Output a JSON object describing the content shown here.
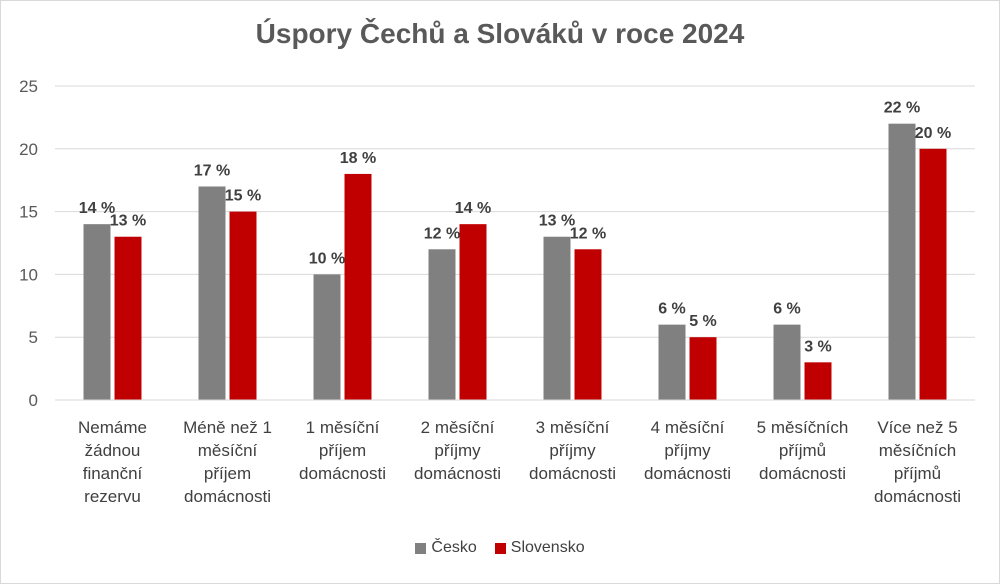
{
  "chart_data": {
    "type": "bar",
    "title": "Úspory Čechů a Slováků v roce 2024",
    "categories": [
      [
        "Nemáme",
        "žádnou",
        "finanční",
        "rezervu"
      ],
      [
        "Méně než 1",
        "měsíční",
        "příjem",
        "domácnosti"
      ],
      [
        "1 měsíční",
        "příjem",
        "domácnosti"
      ],
      [
        "2 měsíční",
        "příjmy",
        "domácnosti"
      ],
      [
        "3 měsíční",
        "příjmy",
        "domácnosti"
      ],
      [
        "4 měsíční",
        "příjmy",
        "domácnosti"
      ],
      [
        "5 měsíčních",
        "příjmů",
        "domácnosti"
      ],
      [
        "Více než 5",
        "měsíčních",
        "příjmů",
        "domácnosti"
      ]
    ],
    "series": [
      {
        "name": "Česko",
        "color": "#808080",
        "values": [
          14,
          17,
          10,
          12,
          13,
          6,
          6,
          22
        ]
      },
      {
        "name": "Slovensko",
        "color": "#c00000",
        "values": [
          13,
          15,
          18,
          14,
          12,
          5,
          3,
          20
        ]
      }
    ],
    "value_suffix": " %",
    "y_ticks": [
      "0",
      "5",
      "10",
      "15",
      "20",
      "25"
    ],
    "ylim": [
      0,
      25
    ],
    "grid": true,
    "legend_position": "bottom"
  }
}
